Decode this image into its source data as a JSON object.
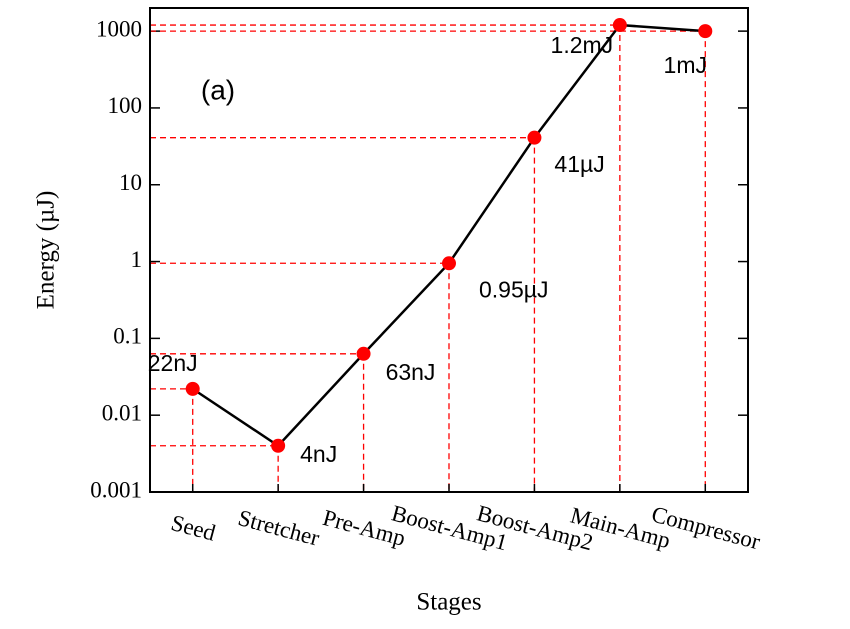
{
  "chart_data": {
    "type": "line",
    "annotation": "(a)",
    "x_label": "Stages",
    "y_label": "Energy (µJ)",
    "categories": [
      "Seed",
      "Stretcher",
      "Pre-Amp",
      "Boost-Amp1",
      "Boost-Amp2",
      "Main-Amp",
      "Compressor"
    ],
    "values": [
      0.022,
      0.004,
      0.063,
      0.95,
      41,
      1200,
      1000
    ],
    "value_labels": [
      "22nJ",
      "4nJ",
      "63nJ",
      "0.95µJ",
      "41µJ",
      "1.2mJ",
      "1mJ"
    ],
    "color": "#000000",
    "marker_color": "#ff0000",
    "guide_lines": true,
    "guide_color": "#ff0000",
    "y_scale": "log",
    "ylim": [
      0.001,
      2000
    ],
    "yticks": [
      0.001,
      0.01,
      0.1,
      1,
      10,
      100,
      1000
    ],
    "grid": false
  }
}
